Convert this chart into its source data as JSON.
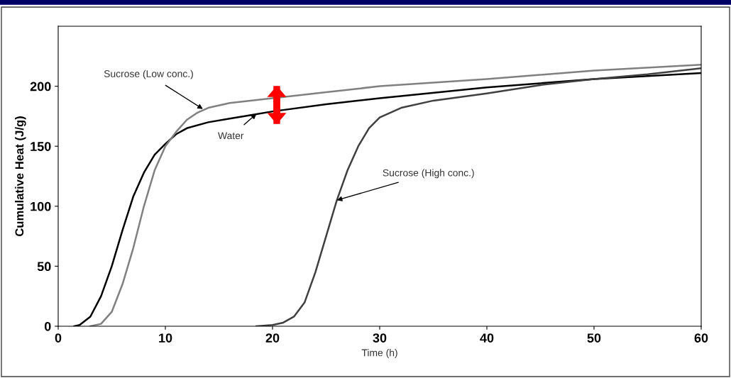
{
  "chart_data": {
    "type": "line",
    "xlabel": "Time (h)",
    "ylabel": "Cumulative Heat (J/g)",
    "xlim": [
      0,
      60
    ],
    "xticks": [
      0,
      10,
      20,
      30,
      40,
      50,
      60
    ],
    "ylim": [
      0,
      250
    ],
    "yticks": [
      0,
      50,
      100,
      150,
      200
    ],
    "grid": false,
    "marker": "none",
    "line_style": "solid",
    "series": [
      {
        "color": "#000000",
        "x": [
          1.5,
          2,
          3,
          4,
          5,
          6,
          7,
          8,
          9,
          10,
          11,
          12,
          14,
          16,
          18,
          20,
          25,
          30,
          40,
          50,
          60
        ],
        "values": [
          0,
          1,
          8,
          25,
          50,
          80,
          108,
          128,
          143,
          152,
          160,
          165,
          170,
          173,
          176,
          179,
          185,
          190,
          199,
          206,
          211
        ]
      },
      {
        "color": "#808080",
        "x": [
          3,
          4,
          5,
          6,
          7,
          8,
          9,
          10,
          11,
          12,
          13,
          14,
          16,
          20,
          25,
          30,
          40,
          50,
          60
        ],
        "values": [
          0,
          2,
          12,
          35,
          65,
          100,
          130,
          150,
          162,
          172,
          178,
          182,
          186,
          190,
          195,
          200,
          206,
          213,
          218
        ]
      },
      {
        "color": "#404040",
        "x": [
          18.5,
          20,
          21,
          22,
          23,
          24,
          25,
          26,
          27,
          28,
          29,
          30,
          32,
          35,
          40,
          45,
          50,
          55,
          60
        ],
        "values": [
          0,
          1,
          3,
          8,
          20,
          45,
          75,
          105,
          130,
          150,
          165,
          174,
          182,
          188,
          194,
          201,
          206,
          210,
          215
        ]
      }
    ],
    "annotations": [
      {
        "text": "Sucrose (Low conc.)",
        "x": 13.5,
        "y": 181
      },
      {
        "text": "Water",
        "x": 18.5,
        "y": 177
      },
      {
        "text": "Sucrose (High conc.)",
        "x": 26,
        "y": 105
      }
    ]
  }
}
